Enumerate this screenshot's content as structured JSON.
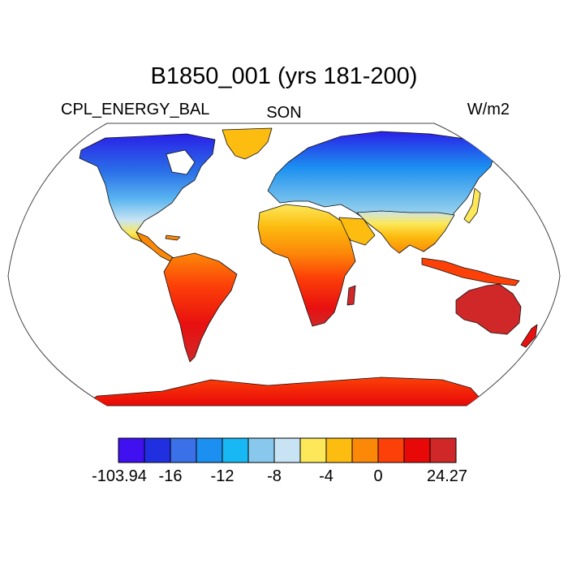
{
  "title": "B1850_001 (yrs 181-200)",
  "subtitle_left": "CPL_ENERGY_BAL",
  "subtitle_center": "SON",
  "subtitle_right": "W/m2",
  "colorbar": {
    "colors": [
      "#4010f0",
      "#2030e0",
      "#3a70e8",
      "#1c90f0",
      "#18b8f4",
      "#88c8ec",
      "#c8e4f4",
      "#fce858",
      "#fcbc10",
      "#fc8808",
      "#fc4008",
      "#e80808",
      "#d02828"
    ],
    "labels": [
      "-103.94",
      "-16",
      "-12",
      "-8",
      "-4",
      "0",
      "24.27"
    ]
  },
  "map": {
    "projection": "Robinson",
    "ocean_color": "#ffffff",
    "coastline_color": "#000000"
  }
}
